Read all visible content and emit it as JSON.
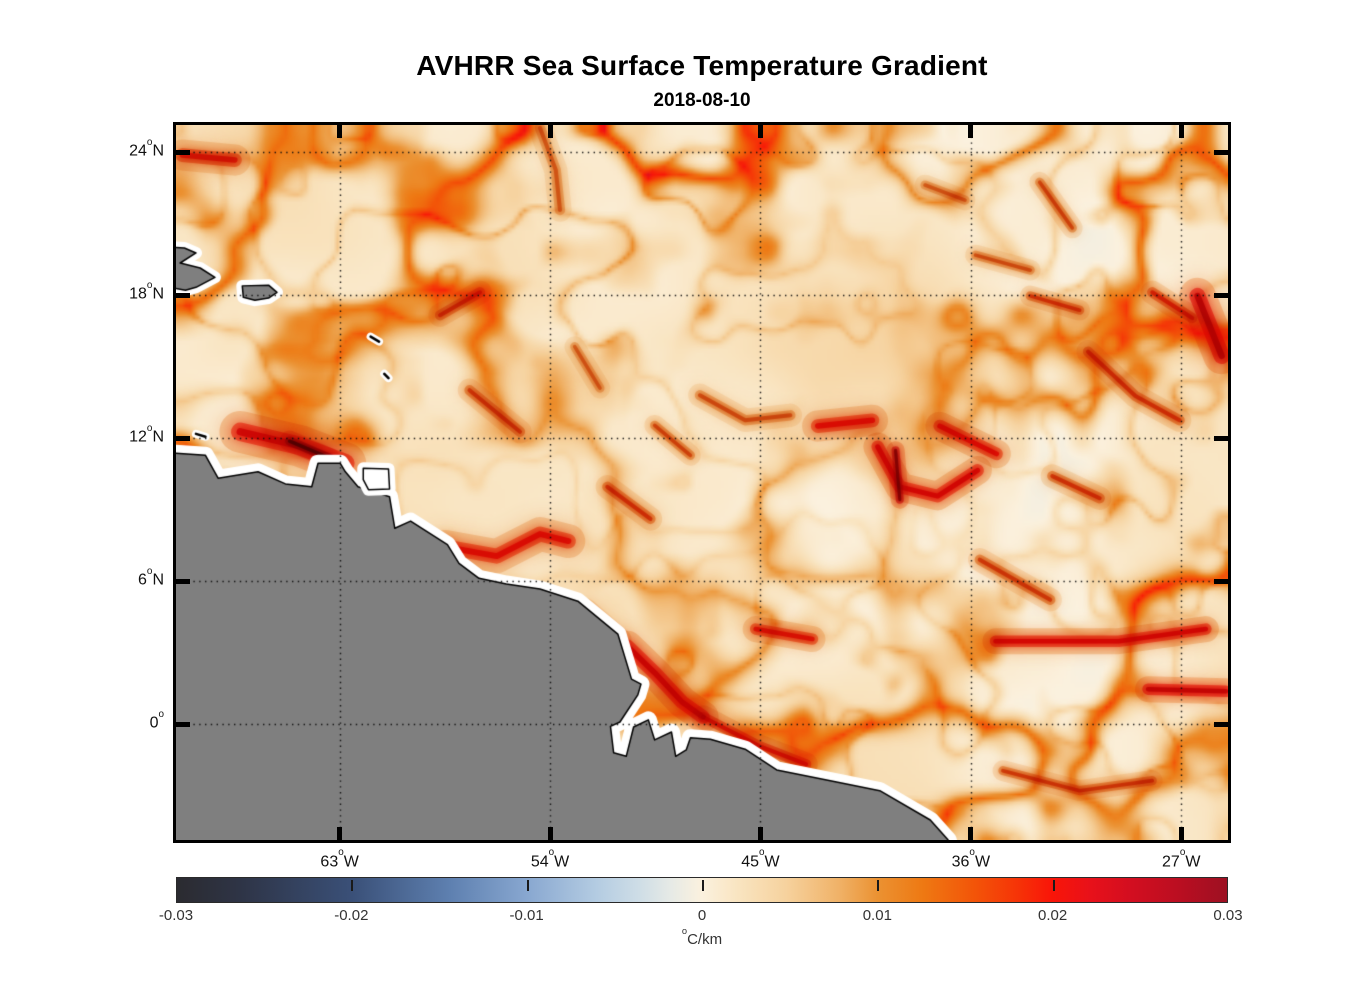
{
  "figure": {
    "title": "AVHRR Sea Surface Temperature Gradient",
    "subtitle": "2018-08-10"
  },
  "chart_data": {
    "type": "heatmap",
    "title": "AVHRR Sea Surface Temperature Gradient",
    "subtitle": "2018-08-10",
    "axes": {
      "lon_west_range": [
        70.0,
        25.0
      ],
      "lat_range": [
        25.15,
        -4.85
      ],
      "grid": "dotted"
    },
    "xticks": [
      {
        "lon_w": 63,
        "text": "63",
        "sup": "o",
        "suffix": "W"
      },
      {
        "lon_w": 54,
        "text": "54",
        "sup": "o",
        "suffix": "W"
      },
      {
        "lon_w": 45,
        "text": "45",
        "sup": "o",
        "suffix": "W"
      },
      {
        "lon_w": 36,
        "text": "36",
        "sup": "o",
        "suffix": "W"
      },
      {
        "lon_w": 27,
        "text": "27",
        "sup": "o",
        "suffix": "W"
      }
    ],
    "yticks": [
      {
        "lat": 24,
        "text": "24",
        "sup": "o",
        "suffix": "N"
      },
      {
        "lat": 18,
        "text": "18",
        "sup": "o",
        "suffix": "N"
      },
      {
        "lat": 12,
        "text": "12",
        "sup": "o",
        "suffix": "N"
      },
      {
        "lat": 6,
        "text": "6",
        "sup": "o",
        "suffix": "N"
      },
      {
        "lat": 0,
        "text": "0",
        "sup": "o",
        "suffix": ""
      }
    ],
    "colorbar": {
      "vmin": -0.03,
      "vmax": 0.03,
      "tick_labels": [
        "-0.03",
        "-0.02",
        "-0.01",
        "0",
        "0.01",
        "0.02",
        "0.03"
      ],
      "unit_sup": "o",
      "unit_text": "C/km",
      "colormap": [
        {
          "p": 0.0,
          "c": "#2b2b30"
        },
        {
          "p": 0.06,
          "c": "#2e3446"
        },
        {
          "p": 0.167,
          "c": "#3a5078"
        },
        {
          "p": 0.26,
          "c": "#5e80b0"
        },
        {
          "p": 0.333,
          "c": "#88a7d0"
        },
        {
          "p": 0.4,
          "c": "#b4cce2"
        },
        {
          "p": 0.44,
          "c": "#cedde6"
        },
        {
          "p": 0.47,
          "c": "#e6eae6"
        },
        {
          "p": 0.5,
          "c": "#fbf1de"
        },
        {
          "p": 0.535,
          "c": "#f9e4c0"
        },
        {
          "p": 0.58,
          "c": "#f6d29e"
        },
        {
          "p": 0.63,
          "c": "#f0b268"
        },
        {
          "p": 0.667,
          "c": "#eb9232"
        },
        {
          "p": 0.71,
          "c": "#ee7913"
        },
        {
          "p": 0.76,
          "c": "#f35408"
        },
        {
          "p": 0.8,
          "c": "#f63407"
        },
        {
          "p": 0.833,
          "c": "#f91508"
        },
        {
          "p": 0.87,
          "c": "#e8111a"
        },
        {
          "p": 0.91,
          "c": "#d20e20"
        },
        {
          "p": 0.955,
          "c": "#ba0e21"
        },
        {
          "p": 1.0,
          "c": "#9d1022"
        }
      ]
    },
    "map": {
      "land_color": "#7f7f7f",
      "coast_color": "#000000",
      "nodata_buffer_color": "#ffffff",
      "mainland": [
        [
          -0.03,
          0.456
        ],
        [
          0.028,
          0.462
        ],
        [
          0.04,
          0.494
        ],
        [
          0.078,
          0.485
        ],
        [
          0.104,
          0.502
        ],
        [
          0.129,
          0.506
        ],
        [
          0.135,
          0.473
        ],
        [
          0.156,
          0.473
        ],
        [
          0.161,
          0.485
        ],
        [
          0.173,
          0.506
        ],
        [
          0.203,
          0.52
        ],
        [
          0.208,
          0.564
        ],
        [
          0.223,
          0.554
        ],
        [
          0.258,
          0.587
        ],
        [
          0.269,
          0.613
        ],
        [
          0.288,
          0.634
        ],
        [
          0.314,
          0.642
        ],
        [
          0.346,
          0.649
        ],
        [
          0.382,
          0.666
        ],
        [
          0.42,
          0.712
        ],
        [
          0.433,
          0.775
        ],
        [
          0.442,
          0.782
        ],
        [
          0.439,
          0.797
        ],
        [
          0.422,
          0.835
        ],
        [
          0.413,
          0.841
        ],
        [
          0.416,
          0.878
        ],
        [
          0.428,
          0.883
        ],
        [
          0.435,
          0.842
        ],
        [
          0.449,
          0.832
        ],
        [
          0.455,
          0.86
        ],
        [
          0.471,
          0.849
        ],
        [
          0.475,
          0.883
        ],
        [
          0.485,
          0.874
        ],
        [
          0.489,
          0.857
        ],
        [
          0.508,
          0.859
        ],
        [
          0.541,
          0.873
        ],
        [
          0.571,
          0.902
        ],
        [
          0.622,
          0.917
        ],
        [
          0.669,
          0.931
        ],
        [
          0.717,
          0.972
        ],
        [
          0.734,
          1.0
        ],
        [
          0.75,
          1.08
        ],
        [
          -0.03,
          1.08
        ]
      ],
      "islands": [
        {
          "name": "island-outline-nodata",
          "fill": "nodata",
          "pts": [
            [
              0.178,
              0.48
            ],
            [
              0.202,
              0.481
            ],
            [
              0.203,
              0.509
            ],
            [
              0.183,
              0.51
            ],
            [
              0.178,
              0.496
            ]
          ]
        },
        {
          "name": "island-left-edge",
          "fill": "land",
          "pts": [
            [
              -0.02,
              0.17
            ],
            [
              0.008,
              0.172
            ],
            [
              0.019,
              0.179
            ],
            [
              0.004,
              0.193
            ],
            [
              0.023,
              0.2
            ],
            [
              0.037,
              0.213
            ],
            [
              0.019,
              0.227
            ],
            [
              0.009,
              0.231
            ],
            [
              -0.02,
              0.224
            ]
          ]
        },
        {
          "name": "island-small",
          "fill": "land",
          "pts": [
            [
              0.063,
              0.225
            ],
            [
              0.088,
              0.224
            ],
            [
              0.096,
              0.234
            ],
            [
              0.088,
              0.242
            ],
            [
              0.075,
              0.245
            ],
            [
              0.064,
              0.241
            ]
          ]
        }
      ],
      "islets": [
        [
          [
            0.019,
            0.432
          ],
          [
            0.028,
            0.436
          ]
        ],
        [
          [
            0.185,
            0.296
          ],
          [
            0.193,
            0.303
          ]
        ],
        [
          [
            0.198,
            0.348
          ],
          [
            0.202,
            0.354
          ]
        ]
      ]
    },
    "gradient_features": [
      {
        "pts": [
          [
            0.006,
            0.042
          ],
          [
            0.056,
            0.049
          ]
        ],
        "w": 12,
        "v": 0.017
      },
      {
        "pts": [
          [
            0.346,
            0.004
          ],
          [
            0.361,
            0.063
          ],
          [
            0.365,
            0.119
          ]
        ],
        "w": 9,
        "v": 0.009
      },
      {
        "pts": [
          [
            0.251,
            0.266
          ],
          [
            0.289,
            0.234
          ]
        ],
        "w": 9,
        "v": 0.013
      },
      {
        "pts": [
          [
            0.061,
            0.429
          ],
          [
            0.118,
            0.449
          ],
          [
            0.161,
            0.473
          ]
        ],
        "w": 16,
        "v": 0.022
      },
      {
        "pts": [
          [
            0.108,
            0.442
          ],
          [
            0.146,
            0.466
          ]
        ],
        "w": 8,
        "v": 0.03
      },
      {
        "pts": [
          [
            0.279,
            0.371
          ],
          [
            0.327,
            0.429
          ]
        ],
        "w": 9,
        "v": 0.012
      },
      {
        "pts": [
          [
            0.256,
            0.59
          ],
          [
            0.305,
            0.603
          ],
          [
            0.346,
            0.572
          ],
          [
            0.373,
            0.582
          ]
        ],
        "w": 13,
        "v": 0.019
      },
      {
        "pts": [
          [
            0.429,
            0.729
          ],
          [
            0.455,
            0.766
          ],
          [
            0.481,
            0.807
          ],
          [
            0.501,
            0.828
          ]
        ],
        "w": 12,
        "v": 0.022
      },
      {
        "pts": [
          [
            0.501,
            0.828
          ],
          [
            0.555,
            0.869
          ],
          [
            0.599,
            0.894
          ]
        ],
        "w": 9,
        "v": 0.017
      },
      {
        "pts": [
          [
            0.551,
            0.705
          ],
          [
            0.605,
            0.719
          ]
        ],
        "w": 10,
        "v": 0.018
      },
      {
        "pts": [
          [
            0.61,
            0.421
          ],
          [
            0.662,
            0.413
          ]
        ],
        "w": 12,
        "v": 0.019
      },
      {
        "pts": [
          [
            0.667,
            0.45
          ],
          [
            0.688,
            0.506
          ],
          [
            0.724,
            0.519
          ],
          [
            0.762,
            0.483
          ]
        ],
        "w": 11,
        "v": 0.021
      },
      {
        "pts": [
          [
            0.726,
            0.421
          ],
          [
            0.78,
            0.46
          ]
        ],
        "w": 11,
        "v": 0.019
      },
      {
        "pts": [
          [
            0.684,
            0.455
          ],
          [
            0.688,
            0.524
          ]
        ],
        "w": 7,
        "v": 0.027
      },
      {
        "pts": [
          [
            0.833,
            0.491
          ],
          [
            0.878,
            0.522
          ]
        ],
        "w": 9,
        "v": 0.013
      },
      {
        "pts": [
          [
            0.971,
            0.239
          ],
          [
            0.994,
            0.323
          ]
        ],
        "w": 14,
        "v": 0.024
      },
      {
        "pts": [
          [
            0.928,
            0.234
          ],
          [
            0.966,
            0.27
          ]
        ],
        "w": 9,
        "v": 0.015
      },
      {
        "pts": [
          [
            0.812,
            0.239
          ],
          [
            0.859,
            0.259
          ]
        ],
        "w": 8,
        "v": 0.013
      },
      {
        "pts": [
          [
            0.779,
            0.722
          ],
          [
            0.896,
            0.722
          ],
          [
            0.979,
            0.705
          ]
        ],
        "w": 10,
        "v": 0.021
      },
      {
        "pts": [
          [
            0.924,
            0.789
          ],
          [
            0.998,
            0.792
          ]
        ],
        "w": 10,
        "v": 0.023
      },
      {
        "pts": [
          [
            0.786,
            0.903
          ],
          [
            0.859,
            0.931
          ],
          [
            0.928,
            0.917
          ]
        ],
        "w": 8,
        "v": 0.012
      },
      {
        "pts": [
          [
            0.41,
            0.506
          ],
          [
            0.451,
            0.551
          ]
        ],
        "w": 9,
        "v": 0.013
      },
      {
        "pts": [
          [
            0.821,
            0.08
          ],
          [
            0.852,
            0.144
          ]
        ],
        "w": 8,
        "v": 0.011
      },
      {
        "pts": [
          [
            0.712,
            0.084
          ],
          [
            0.75,
            0.105
          ]
        ],
        "w": 8,
        "v": 0.009
      },
      {
        "pts": [
          [
            0.379,
            0.31
          ],
          [
            0.403,
            0.368
          ]
        ],
        "w": 8,
        "v": 0.009
      },
      {
        "pts": [
          [
            0.455,
            0.42
          ],
          [
            0.489,
            0.462
          ]
        ],
        "w": 8,
        "v": 0.011
      },
      {
        "pts": [
          [
            0.867,
            0.317
          ],
          [
            0.912,
            0.379
          ],
          [
            0.954,
            0.413
          ]
        ],
        "w": 9,
        "v": 0.013
      },
      {
        "pts": [
          [
            0.764,
            0.608
          ],
          [
            0.831,
            0.664
          ]
        ],
        "w": 9,
        "v": 0.012
      },
      {
        "pts": [
          [
            0.498,
            0.378
          ],
          [
            0.541,
            0.413
          ],
          [
            0.584,
            0.406
          ]
        ],
        "w": 9,
        "v": 0.01
      },
      {
        "pts": [
          [
            0.76,
            0.182
          ],
          [
            0.812,
            0.203
          ]
        ],
        "w": 8,
        "v": 0.01
      },
      {
        "pts": [
          [
            0.389,
            0.678
          ],
          [
            0.422,
            0.72
          ]
        ],
        "w": 9,
        "v": 0.016
      }
    ]
  }
}
